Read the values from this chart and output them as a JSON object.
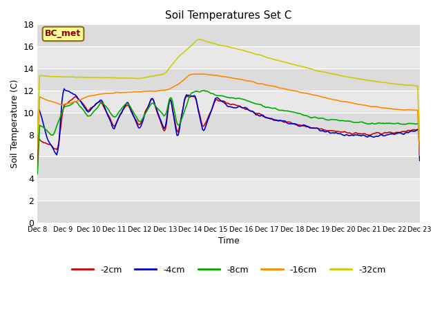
{
  "title": "Soil Temperatures Set C",
  "xlabel": "Time",
  "ylabel": "Soil Temperature (C)",
  "ylim": [
    0,
    18
  ],
  "yticks": [
    0,
    2,
    4,
    6,
    8,
    10,
    12,
    14,
    16,
    18
  ],
  "annotation_text": "BC_met",
  "annotation_color": "#8B0000",
  "annotation_bg": "#FFFF99",
  "annotation_edge": "#8B6914",
  "legend_labels": [
    "-2cm",
    "-4cm",
    "-8cm",
    "-16cm",
    "-32cm"
  ],
  "line_colors": [
    "#CC0000",
    "#0000CC",
    "#00AA00",
    "#FF8800",
    "#CCCC00"
  ],
  "band_colors": [
    "#DCDCDC",
    "#E8E8E8"
  ],
  "bg_color": "#FFFFFF",
  "figsize": [
    6.4,
    4.8
  ],
  "dpi": 100
}
